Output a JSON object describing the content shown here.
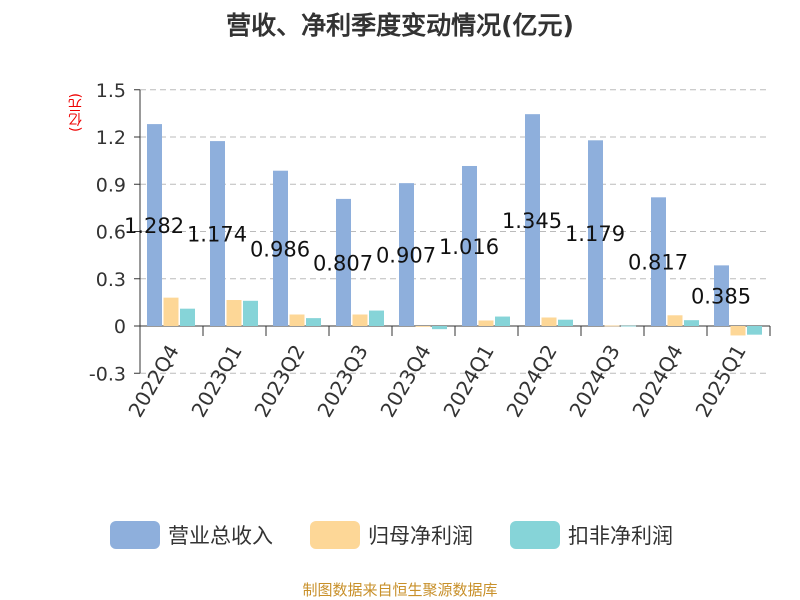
{
  "chart_data": {
    "type": "bar",
    "title": "营收、净利季度变动情况(亿元)",
    "ylabel": "(亿元)",
    "ylim": [
      -0.3,
      1.5
    ],
    "yticks": [
      "-0.3",
      "0",
      "0.3",
      "0.6",
      "0.9",
      "1.2",
      "1.5"
    ],
    "grid": true,
    "legend_position": "bottom",
    "categories": [
      "2022Q4",
      "2023Q1",
      "2023Q2",
      "2023Q3",
      "2023Q4",
      "2024Q1",
      "2024Q2",
      "2024Q3",
      "2024Q4",
      "2025Q1"
    ],
    "series": [
      {
        "name": "营业总收入",
        "color": "#8eafdc",
        "values": [
          1.282,
          1.174,
          0.986,
          0.807,
          0.907,
          1.016,
          1.345,
          1.179,
          0.817,
          0.385
        ],
        "labels": [
          "1.282",
          "1.174",
          "0.986",
          "0.807",
          "0.907",
          "1.016",
          "1.345",
          "1.179",
          "0.817",
          "0.385"
        ]
      },
      {
        "name": "归母净利润",
        "color": "#fdd797",
        "values": [
          0.18,
          0.165,
          0.073,
          0.073,
          0.0,
          0.035,
          0.054,
          0.003,
          0.068,
          -0.06
        ]
      },
      {
        "name": "扣非净利润",
        "color": "#86d4d8",
        "values": [
          0.11,
          0.16,
          0.05,
          0.098,
          -0.02,
          0.06,
          0.04,
          0.002,
          0.037,
          -0.055
        ]
      }
    ]
  },
  "footer": "制图数据来自恒生聚源数据库"
}
